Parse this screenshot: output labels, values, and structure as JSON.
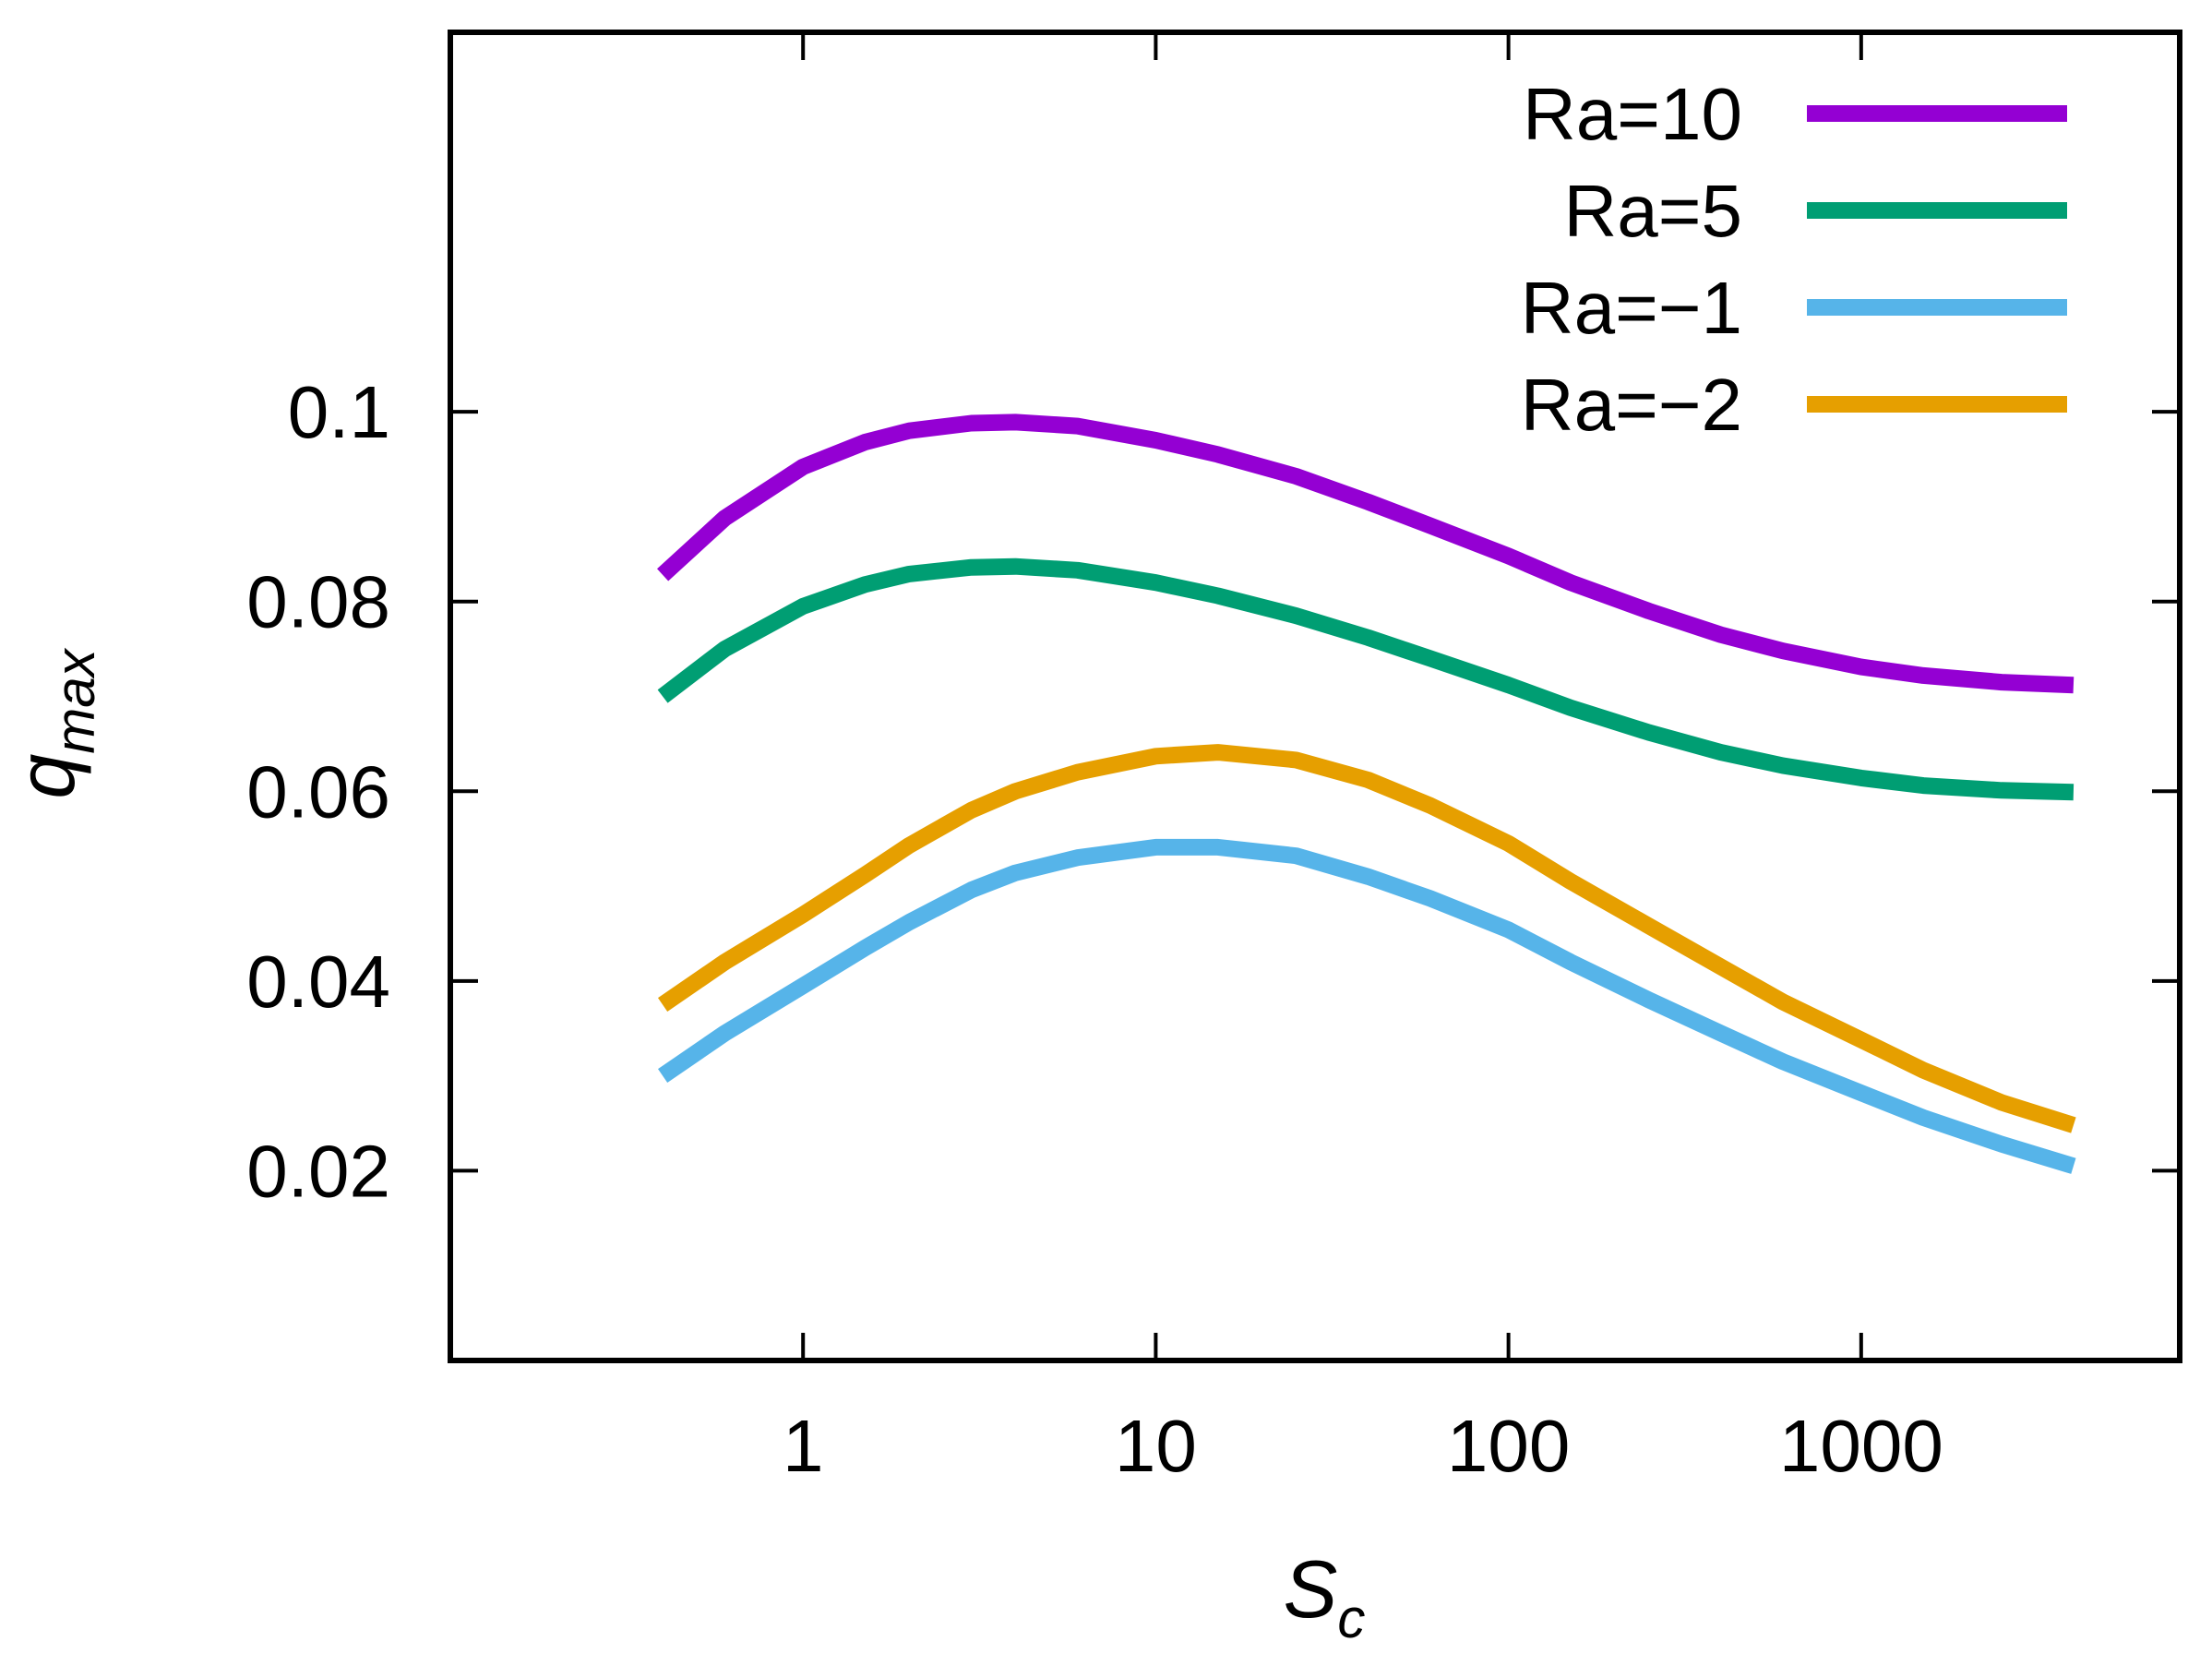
{
  "chart_data": {
    "type": "line",
    "title": "",
    "xlabel": {
      "base": "S",
      "sub": "c"
    },
    "ylabel": {
      "base": "q",
      "sub": "max"
    },
    "xscale": "log",
    "xlim": [
      0.1,
      8000
    ],
    "ylim": [
      0.0,
      0.14
    ],
    "xticks": [
      1,
      10,
      100,
      1000
    ],
    "xtick_labels": [
      "1",
      "10",
      "100",
      "1000"
    ],
    "yticks": [
      0.02,
      0.04,
      0.06,
      0.08,
      0.1
    ],
    "ytick_labels": [
      "0.02",
      "0.04",
      "0.06",
      "0.08",
      "0.1"
    ],
    "grid": false,
    "legend_position": "top-right",
    "x": [
      0.4,
      0.6,
      1,
      1.5,
      2,
      3,
      4,
      6,
      10,
      15,
      25,
      40,
      60,
      100,
      150,
      250,
      400,
      600,
      1000,
      1500,
      2500,
      4000
    ],
    "series": [
      {
        "name": "Ra=10",
        "color": "#9400d3",
        "values": [
          0.0828,
          0.0888,
          0.0942,
          0.0968,
          0.098,
          0.0988,
          0.0989,
          0.0985,
          0.097,
          0.0955,
          0.0932,
          0.0905,
          0.088,
          0.0848,
          0.082,
          0.079,
          0.0765,
          0.0748,
          0.0731,
          0.0722,
          0.0715,
          0.0712
        ]
      },
      {
        "name": "Ra=5",
        "color": "#009e73",
        "values": [
          0.07,
          0.075,
          0.0795,
          0.0818,
          0.0829,
          0.0836,
          0.0837,
          0.0833,
          0.082,
          0.0806,
          0.0785,
          0.0762,
          0.074,
          0.0712,
          0.0688,
          0.0662,
          0.0641,
          0.0627,
          0.0614,
          0.0606,
          0.0601,
          0.0599
        ]
      },
      {
        "name": "Ra=−1",
        "color": "#56b4e9",
        "values": [
          0.03,
          0.0345,
          0.0395,
          0.0435,
          0.0462,
          0.0496,
          0.0514,
          0.053,
          0.0541,
          0.0541,
          0.0532,
          0.051,
          0.0487,
          0.0454,
          0.042,
          0.038,
          0.0345,
          0.0315,
          0.0282,
          0.0256,
          0.0228,
          0.0205
        ]
      },
      {
        "name": "Ra=−2",
        "color": "#e69f00",
        "values": [
          0.0375,
          0.042,
          0.047,
          0.0512,
          0.0543,
          0.058,
          0.06,
          0.062,
          0.0637,
          0.0641,
          0.0633,
          0.0612,
          0.0585,
          0.0545,
          0.0505,
          0.0458,
          0.0415,
          0.0378,
          0.0338,
          0.0306,
          0.0272,
          0.0248
        ]
      }
    ]
  },
  "colors": {
    "axis": "#000000",
    "background": "#ffffff"
  }
}
